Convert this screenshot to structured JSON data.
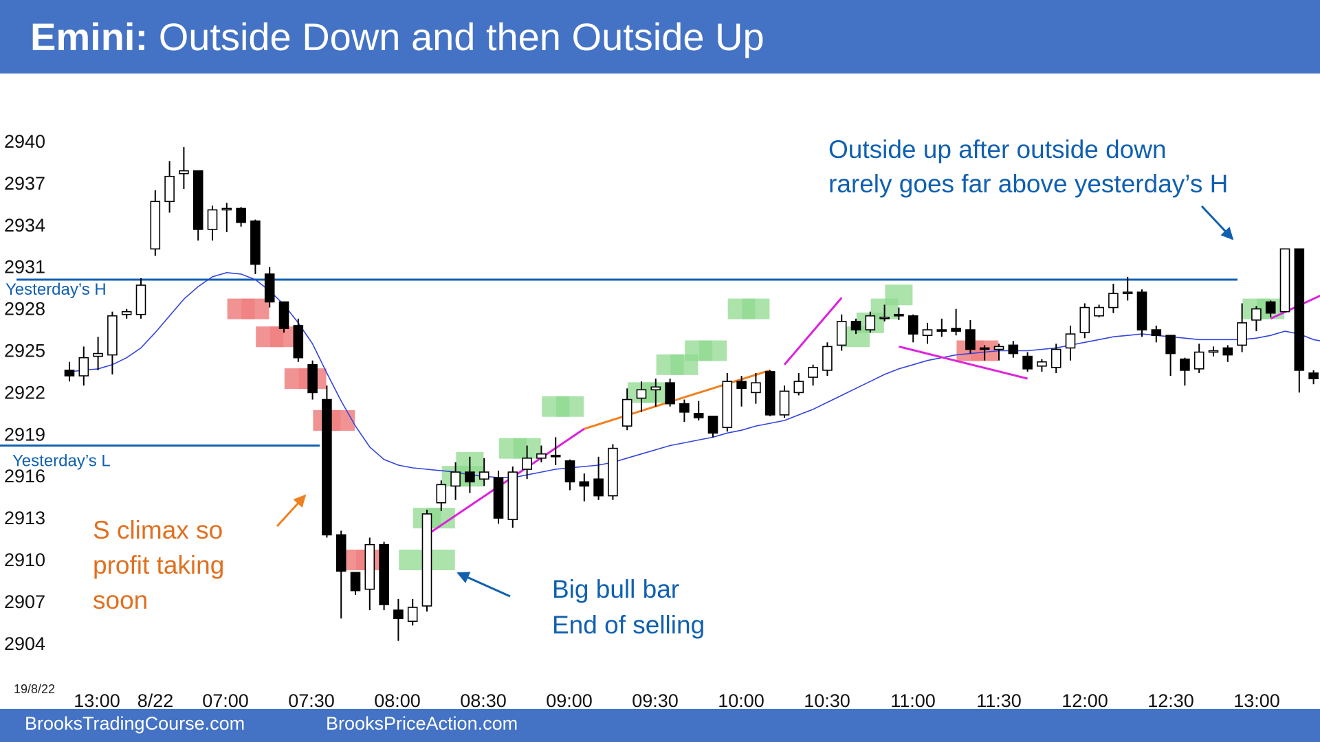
{
  "header": {
    "title_bold": "Emini:",
    "title_rest": "Outside Down and then Outside Up"
  },
  "footer": {
    "left": "BrooksTradingCourse.com",
    "right": "BrooksPriceAction.com"
  },
  "date_label": "19/8/22",
  "colors": {
    "brand": "#4472c4",
    "bull_box": "#8fd98f",
    "bear_box": "#f08080",
    "ema": "#3344dd",
    "level_line": "#1060b0",
    "magenta_line": "#dd22dd",
    "orange_line": "#f08020",
    "blue_annotation": "#1060b0",
    "orange_annotation": "#e07020"
  },
  "chart_data": {
    "type": "candlestick",
    "title": "Emini: Outside Down and then Outside Up",
    "ylim": [
      2902,
      2942
    ],
    "y_ticks": [
      "2940",
      "2937",
      "2934",
      "2931",
      "2928",
      "2925",
      "2922",
      "2919",
      "2916",
      "2913",
      "2910",
      "2907",
      "2904"
    ],
    "x_ticks": [
      "13:00",
      "8/22",
      "07:00",
      "07:30",
      "08:00",
      "08:30",
      "09:00",
      "09:30",
      "10:00",
      "10:30",
      "11:00",
      "11:30",
      "12:00",
      "12:30",
      "13:00"
    ],
    "levels": [
      {
        "label": "Yesterday’s H",
        "value": 2930.1
      },
      {
        "label": "Yesterday’s L",
        "value": 2918.2
      }
    ],
    "annotations": [
      {
        "lines": [
          "Outside up after outside down",
          "rarely goes far above yesterday’s H"
        ],
        "color": "blue"
      },
      {
        "lines": [
          "S climax so",
          "profit taking",
          "soon"
        ],
        "color": "orange"
      },
      {
        "lines": [
          "Big bull bar",
          "End of selling"
        ],
        "color": "blue"
      }
    ],
    "candles": [
      {
        "o": 2923.6,
        "h": 2924.2,
        "l": 2922.8,
        "c": 2923.2
      },
      {
        "o": 2923.2,
        "h": 2925.3,
        "l": 2922.5,
        "c": 2924.5
      },
      {
        "o": 2924.6,
        "h": 2926,
        "l": 2923.6,
        "c": 2924.8
      },
      {
        "o": 2924.7,
        "h": 2927.8,
        "l": 2923.3,
        "c": 2927.5
      },
      {
        "o": 2927.6,
        "h": 2928,
        "l": 2927.3,
        "c": 2927.8
      },
      {
        "o": 2927.6,
        "h": 2930.2,
        "l": 2927.3,
        "c": 2929.7
      },
      {
        "o": 2932.3,
        "h": 2936.5,
        "l": 2931.8,
        "c": 2935.7
      },
      {
        "o": 2935.7,
        "h": 2938.6,
        "l": 2934.9,
        "c": 2937.5
      },
      {
        "o": 2937.7,
        "h": 2939.6,
        "l": 2936.6,
        "c": 2937.9
      },
      {
        "o": 2937.9,
        "h": 2937.9,
        "l": 2932.9,
        "c": 2933.7
      },
      {
        "o": 2933.7,
        "h": 2935.4,
        "l": 2932.9,
        "c": 2935.1
      },
      {
        "o": 2935.1,
        "h": 2935.6,
        "l": 2933.5,
        "c": 2935.2
      },
      {
        "o": 2935.2,
        "h": 2935.3,
        "l": 2933.9,
        "c": 2934.2
      },
      {
        "o": 2934.3,
        "h": 2934.4,
        "l": 2930.5,
        "c": 2931.2
      },
      {
        "o": 2930.5,
        "h": 2931,
        "l": 2928.1,
        "c": 2928.5
      },
      {
        "o": 2928.5,
        "h": 2928.5,
        "l": 2926.3,
        "c": 2926.6
      },
      {
        "o": 2926.8,
        "h": 2927.3,
        "l": 2924.2,
        "c": 2924.5
      },
      {
        "o": 2924,
        "h": 2924.3,
        "l": 2921.5,
        "c": 2922
      },
      {
        "o": 2921.5,
        "h": 2922.5,
        "l": 2911.6,
        "c": 2911.8
      },
      {
        "o": 2911.8,
        "h": 2912.1,
        "l": 2905.8,
        "c": 2909.2
      },
      {
        "o": 2909.1,
        "h": 2909.1,
        "l": 2907.5,
        "c": 2907.8
      },
      {
        "o": 2907.9,
        "h": 2911.6,
        "l": 2906.4,
        "c": 2911.1
      },
      {
        "o": 2911.1,
        "h": 2911.3,
        "l": 2906.4,
        "c": 2906.8
      },
      {
        "o": 2906.4,
        "h": 2907.2,
        "l": 2904.2,
        "c": 2905.8
      },
      {
        "o": 2905.6,
        "h": 2907.2,
        "l": 2905.3,
        "c": 2906.6
      },
      {
        "o": 2906.7,
        "h": 2913.6,
        "l": 2906.3,
        "c": 2913.3
      },
      {
        "o": 2914.1,
        "h": 2915.7,
        "l": 2913.5,
        "c": 2915.4
      },
      {
        "o": 2915.3,
        "h": 2917,
        "l": 2914.3,
        "c": 2916.3
      },
      {
        "o": 2916.3,
        "h": 2917.4,
        "l": 2914.8,
        "c": 2915.6
      },
      {
        "o": 2915.8,
        "h": 2917.3,
        "l": 2915.3,
        "c": 2916.3
      },
      {
        "o": 2915.9,
        "h": 2916.4,
        "l": 2912.6,
        "c": 2913
      },
      {
        "o": 2912.9,
        "h": 2916.7,
        "l": 2912.3,
        "c": 2916.3
      },
      {
        "o": 2916.5,
        "h": 2918.2,
        "l": 2915.8,
        "c": 2917.3
      },
      {
        "o": 2917.3,
        "h": 2918.2,
        "l": 2917,
        "c": 2917.6
      },
      {
        "o": 2917.5,
        "h": 2918.8,
        "l": 2916.8,
        "c": 2917.4
      },
      {
        "o": 2917.1,
        "h": 2917.2,
        "l": 2915,
        "c": 2915.6
      },
      {
        "o": 2915.6,
        "h": 2916.2,
        "l": 2914.2,
        "c": 2915.3
      },
      {
        "o": 2915.8,
        "h": 2917.4,
        "l": 2914.3,
        "c": 2914.6
      },
      {
        "o": 2914.6,
        "h": 2918.3,
        "l": 2914.3,
        "c": 2918
      },
      {
        "o": 2919.6,
        "h": 2922.3,
        "l": 2919.3,
        "c": 2921.5
      },
      {
        "o": 2921.6,
        "h": 2922.8,
        "l": 2920.6,
        "c": 2922.2
      },
      {
        "o": 2922.2,
        "h": 2923,
        "l": 2921,
        "c": 2922.4
      },
      {
        "o": 2922.7,
        "h": 2923,
        "l": 2921,
        "c": 2921.2
      },
      {
        "o": 2921.2,
        "h": 2921.5,
        "l": 2919.9,
        "c": 2920.6
      },
      {
        "o": 2920.5,
        "h": 2921.4,
        "l": 2920,
        "c": 2920.2
      },
      {
        "o": 2920.3,
        "h": 2920.3,
        "l": 2918.8,
        "c": 2919.1
      },
      {
        "o": 2919.5,
        "h": 2923.4,
        "l": 2919.2,
        "c": 2922.8
      },
      {
        "o": 2922.8,
        "h": 2923.2,
        "l": 2921,
        "c": 2922.3
      },
      {
        "o": 2922,
        "h": 2923.4,
        "l": 2921.2,
        "c": 2922.7
      },
      {
        "o": 2923.5,
        "h": 2923.6,
        "l": 2920.3,
        "c": 2920.4
      },
      {
        "o": 2920.4,
        "h": 2922.5,
        "l": 2920.2,
        "c": 2922.1
      },
      {
        "o": 2922,
        "h": 2923.4,
        "l": 2921.8,
        "c": 2922.8
      },
      {
        "o": 2923.1,
        "h": 2924,
        "l": 2922.5,
        "c": 2923.8
      },
      {
        "o": 2923.6,
        "h": 2925.6,
        "l": 2923.2,
        "c": 2925.3
      },
      {
        "o": 2925.4,
        "h": 2927.6,
        "l": 2925,
        "c": 2927.1
      },
      {
        "o": 2927.1,
        "h": 2927.3,
        "l": 2926.2,
        "c": 2926.5
      },
      {
        "o": 2926.5,
        "h": 2927.8,
        "l": 2926.3,
        "c": 2927.5
      },
      {
        "o": 2927.4,
        "h": 2928.3,
        "l": 2927.1,
        "c": 2927.4
      },
      {
        "o": 2927.6,
        "h": 2928.1,
        "l": 2927.2,
        "c": 2927.5
      },
      {
        "o": 2927.5,
        "h": 2927.6,
        "l": 2925.6,
        "c": 2926.2
      },
      {
        "o": 2926.1,
        "h": 2927,
        "l": 2925.5,
        "c": 2926.5
      },
      {
        "o": 2926.5,
        "h": 2927.3,
        "l": 2926,
        "c": 2926.4
      },
      {
        "o": 2926.6,
        "h": 2928,
        "l": 2926.1,
        "c": 2926.4
      },
      {
        "o": 2926.5,
        "h": 2927.2,
        "l": 2924.8,
        "c": 2925.1
      },
      {
        "o": 2925.2,
        "h": 2925.4,
        "l": 2924.3,
        "c": 2925.1
      },
      {
        "o": 2925.1,
        "h": 2925.5,
        "l": 2924.3,
        "c": 2925.3
      },
      {
        "o": 2925.4,
        "h": 2925.7,
        "l": 2924.5,
        "c": 2924.8
      },
      {
        "o": 2924.6,
        "h": 2924.9,
        "l": 2923.5,
        "c": 2923.7
      },
      {
        "o": 2923.9,
        "h": 2924.4,
        "l": 2923.5,
        "c": 2924.2
      },
      {
        "o": 2923.8,
        "h": 2925.5,
        "l": 2923.4,
        "c": 2925.1
      },
      {
        "o": 2925.2,
        "h": 2926.8,
        "l": 2924.3,
        "c": 2926.2
      },
      {
        "o": 2926.3,
        "h": 2928.4,
        "l": 2925.9,
        "c": 2928.1
      },
      {
        "o": 2927.5,
        "h": 2928.3,
        "l": 2927.4,
        "c": 2928.1
      },
      {
        "o": 2928.1,
        "h": 2929.8,
        "l": 2927.7,
        "c": 2929.1
      },
      {
        "o": 2929.1,
        "h": 2930.3,
        "l": 2928.6,
        "c": 2929.2
      },
      {
        "o": 2929.2,
        "h": 2929.4,
        "l": 2926,
        "c": 2926.5
      },
      {
        "o": 2926.5,
        "h": 2926.8,
        "l": 2925.6,
        "c": 2926.1
      },
      {
        "o": 2926.1,
        "h": 2926.1,
        "l": 2923.2,
        "c": 2924.8
      },
      {
        "o": 2924.4,
        "h": 2924.5,
        "l": 2922.5,
        "c": 2923.6
      },
      {
        "o": 2923.7,
        "h": 2925.5,
        "l": 2923.4,
        "c": 2924.9
      },
      {
        "o": 2924.9,
        "h": 2925.3,
        "l": 2924.6,
        "c": 2925
      },
      {
        "o": 2925.2,
        "h": 2925.4,
        "l": 2924.2,
        "c": 2924.7
      },
      {
        "o": 2925.4,
        "h": 2928.4,
        "l": 2924.9,
        "c": 2927
      },
      {
        "o": 2927.2,
        "h": 2928.2,
        "l": 2926.4,
        "c": 2928
      },
      {
        "o": 2928.5,
        "h": 2928.6,
        "l": 2927.4,
        "c": 2927.7
      },
      {
        "o": 2927.8,
        "h": 2932.3,
        "l": 2927.8,
        "c": 2932.3
      },
      {
        "o": 2932.3,
        "h": 2932.3,
        "l": 2922,
        "c": 2923.6
      },
      {
        "o": 2923.4,
        "h": 2923.6,
        "l": 2922.6,
        "c": 2923
      },
      {
        "o": 2923.3,
        "h": 2923.3,
        "l": 2921.9,
        "c": 2922
      },
      {
        "o": 2922,
        "h": 2922.8,
        "l": 2921.7,
        "c": 2921.9
      }
    ],
    "ema": [
      2923.5,
      2923.6,
      2923.7,
      2924,
      2924.5,
      2925.2,
      2926.3,
      2927.5,
      2928.7,
      2929.6,
      2930.3,
      2930.6,
      2930.5,
      2930.1,
      2929.3,
      2928.3,
      2927,
      2925.5,
      2923.4,
      2921.4,
      2919.6,
      2918.1,
      2917.2,
      2916.8,
      2916.6,
      2916.5,
      2916.4,
      2916.3,
      2916.1,
      2916,
      2915.9,
      2915.9,
      2916.1,
      2916.3,
      2916.5,
      2916.6,
      2916.7,
      2916.8,
      2917,
      2917.3,
      2917.6,
      2917.9,
      2918.2,
      2918.4,
      2918.6,
      2918.8,
      2919.1,
      2919.3,
      2919.6,
      2919.8,
      2920,
      2920.4,
      2920.8,
      2921.3,
      2921.8,
      2922.3,
      2922.8,
      2923.3,
      2923.7,
      2924,
      2924.3,
      2924.5,
      2924.7,
      2924.8,
      2924.9,
      2925,
      2925,
      2925,
      2925.1,
      2925.2,
      2925.4,
      2925.6,
      2925.8,
      2926,
      2926.1,
      2926.2,
      2926.1,
      2926,
      2925.9,
      2925.8,
      2925.8,
      2925.8,
      2925.8,
      2925.9,
      2926.1,
      2926.4,
      2926.2,
      2925.8,
      2925.6,
      2925.3
    ]
  }
}
